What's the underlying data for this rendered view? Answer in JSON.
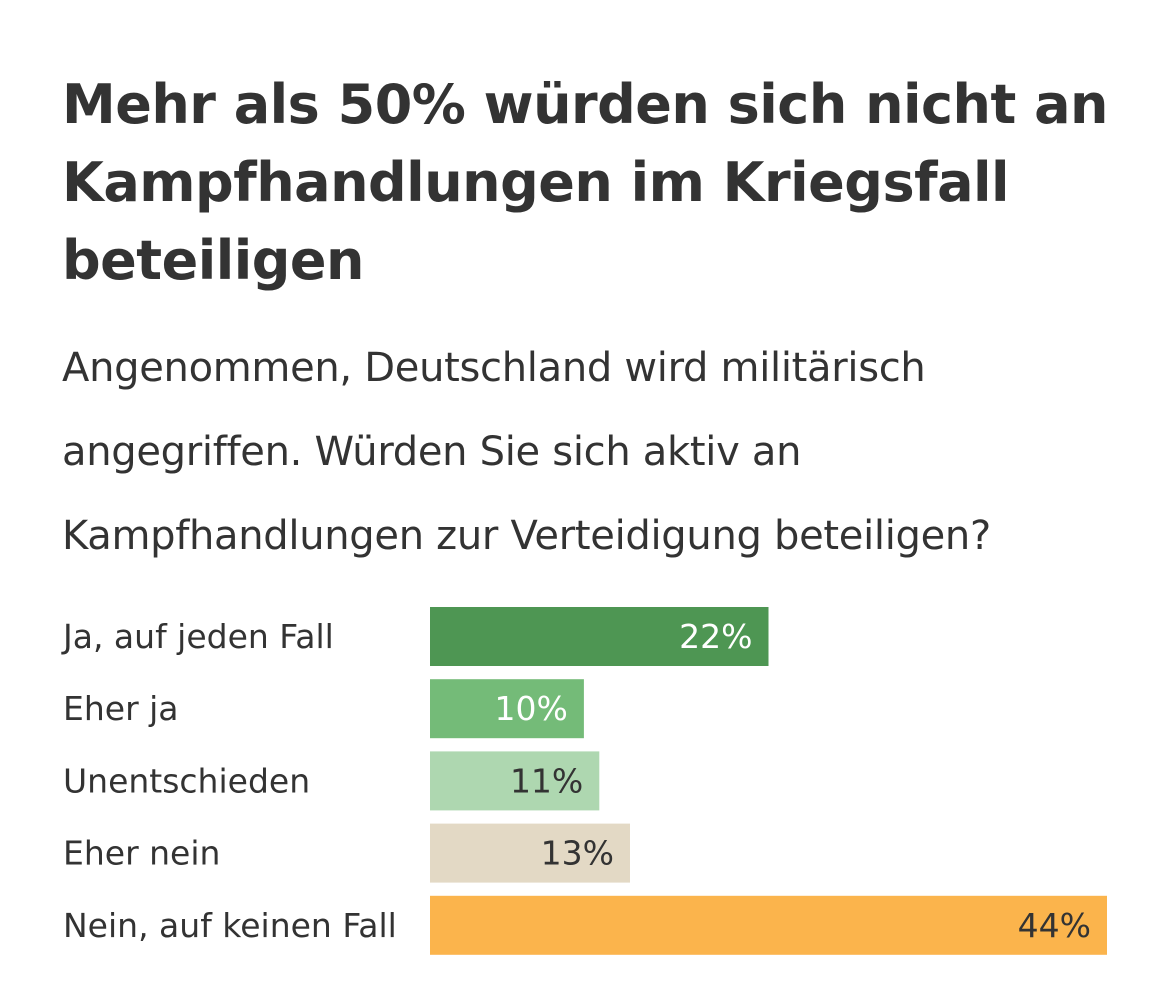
{
  "chart_data": {
    "type": "bar",
    "orientation": "horizontal",
    "title": "Mehr als 50% würden sich nicht an Kampfhandlungen im Kriegsfall beteiligen",
    "subtitle": "Angenommen, Deutschland wird militärisch angegriffen. Würden Sie sich aktiv an Kampfhandlungen zur Verteidigung beteiligen?",
    "categories": [
      "Ja, auf jeden Fall",
      "Eher ja",
      "Unentschieden",
      "Eher nein",
      "Nein, auf keinen Fall"
    ],
    "values": [
      22,
      10,
      11,
      13,
      44
    ],
    "value_labels": [
      "22%",
      "10%",
      "11%",
      "13%",
      "44%"
    ],
    "unit": "%",
    "xlim": [
      0,
      44
    ],
    "grid": false,
    "legend": "none",
    "colors": [
      "#4e9653",
      "#74bb78",
      "#aed7b0",
      "#e3d9c5",
      "#fbb44c"
    ],
    "label_colors": [
      "#ffffff",
      "#ffffff",
      "#333333",
      "#333333",
      "#333333"
    ]
  }
}
